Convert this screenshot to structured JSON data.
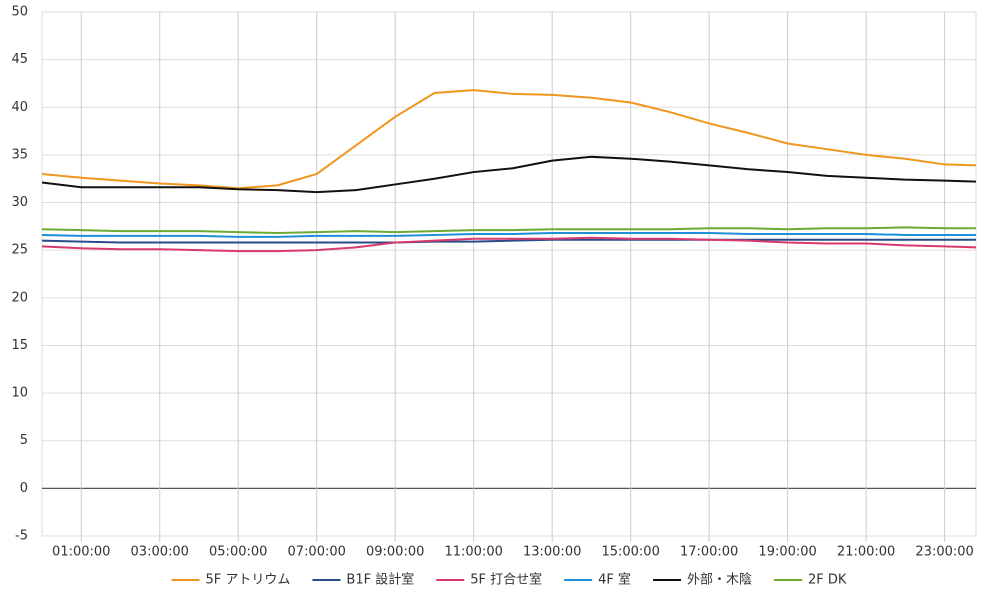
{
  "chart_data": {
    "type": "line",
    "x": [
      0,
      1,
      2,
      3,
      4,
      5,
      6,
      7,
      8,
      9,
      10,
      11,
      12,
      13,
      14,
      15,
      16,
      17,
      18,
      19,
      20,
      21,
      22,
      23,
      23.8
    ],
    "xlim": [
      0,
      23.8
    ],
    "xticks": [
      {
        "value": 1,
        "label": "01:00:00"
      },
      {
        "value": 3,
        "label": "03:00:00"
      },
      {
        "value": 5,
        "label": "05:00:00"
      },
      {
        "value": 7,
        "label": "07:00:00"
      },
      {
        "value": 9,
        "label": "09:00:00"
      },
      {
        "value": 11,
        "label": "11:00:00"
      },
      {
        "value": 13,
        "label": "13:00:00"
      },
      {
        "value": 15,
        "label": "15:00:00"
      },
      {
        "value": 17,
        "label": "17:00:00"
      },
      {
        "value": 19,
        "label": "19:00:00"
      },
      {
        "value": 21,
        "label": "21:00:00"
      },
      {
        "value": 23,
        "label": "23:00:00"
      }
    ],
    "ylim": [
      -5,
      50
    ],
    "yticks": [
      -5,
      0,
      5,
      10,
      15,
      20,
      25,
      30,
      35,
      40,
      45,
      50
    ],
    "grid": true,
    "legend": "bottom",
    "series": [
      {
        "name": "5F アトリウム",
        "color": "#f0961e",
        "values": [
          33,
          32.6,
          32.3,
          32,
          31.8,
          31.5,
          31.8,
          33,
          36,
          39,
          41.5,
          41.8,
          41.4,
          41.3,
          41,
          40.5,
          39.5,
          38.3,
          37.3,
          36.2,
          35.6,
          35,
          34.6,
          34,
          33.9
        ]
      },
      {
        "name": "B1F 設計室",
        "color": "#2a4a8a",
        "values": [
          26,
          25.9,
          25.8,
          25.8,
          25.8,
          25.8,
          25.8,
          25.8,
          25.8,
          25.8,
          25.9,
          25.9,
          26,
          26.1,
          26.1,
          26.1,
          26.1,
          26.1,
          26.1,
          26.1,
          26.1,
          26.1,
          26.1,
          26.1,
          26.1
        ]
      },
      {
        "name": "5F 打合せ室",
        "color": "#d83a6e",
        "values": [
          25.4,
          25.2,
          25.1,
          25.1,
          25,
          24.9,
          24.9,
          25,
          25.3,
          25.8,
          26,
          26.2,
          26.2,
          26.2,
          26.3,
          26.2,
          26.2,
          26.1,
          26,
          25.8,
          25.7,
          25.7,
          25.5,
          25.4,
          25.3
        ]
      },
      {
        "name": "4F 室",
        "color": "#1e8fd8",
        "values": [
          26.6,
          26.5,
          26.5,
          26.5,
          26.5,
          26.4,
          26.4,
          26.5,
          26.5,
          26.5,
          26.6,
          26.7,
          26.7,
          26.8,
          26.8,
          26.8,
          26.8,
          26.8,
          26.7,
          26.7,
          26.7,
          26.7,
          26.6,
          26.6,
          26.6
        ]
      },
      {
        "name": "外部・木陰",
        "color": "#111111",
        "values": [
          32.1,
          31.6,
          31.6,
          31.6,
          31.6,
          31.4,
          31.3,
          31.1,
          31.3,
          31.9,
          32.5,
          33.2,
          33.6,
          34.4,
          34.8,
          34.6,
          34.3,
          33.9,
          33.5,
          33.2,
          32.8,
          32.6,
          32.4,
          32.3,
          32.2
        ]
      },
      {
        "name": "2F DK",
        "color": "#6aab34",
        "values": [
          27.2,
          27.1,
          27,
          27,
          27,
          26.9,
          26.8,
          26.9,
          27,
          26.9,
          27,
          27.1,
          27.1,
          27.2,
          27.2,
          27.2,
          27.2,
          27.3,
          27.3,
          27.2,
          27.3,
          27.3,
          27.4,
          27.3,
          27.3
        ]
      }
    ]
  }
}
